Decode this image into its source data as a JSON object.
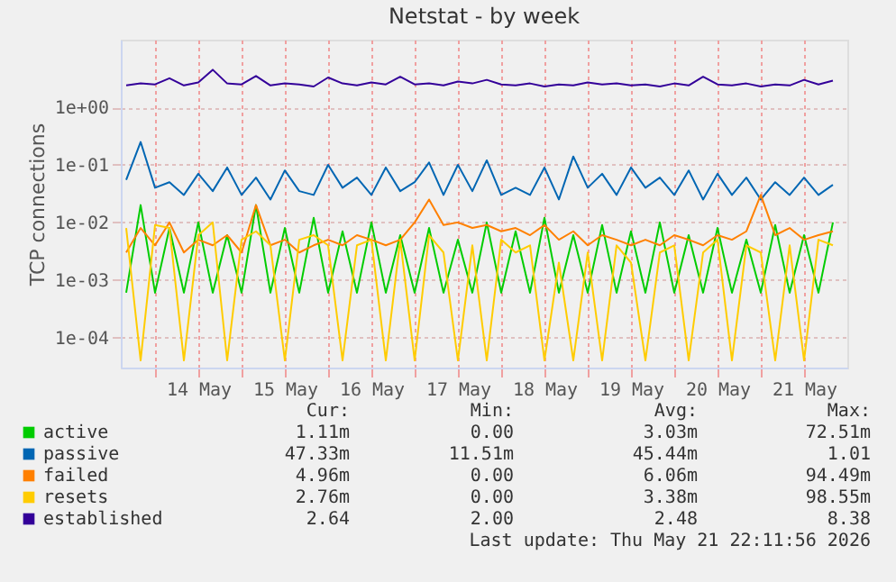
{
  "chart_data": {
    "type": "line",
    "title": "Netstat - by week",
    "ylabel": "TCP connections",
    "log": "y",
    "grid": true,
    "legend": "bottom",
    "line_style": "solid",
    "marker": "none",
    "xlim": [
      "2026-05-13T14:30",
      "2026-05-22T00:00"
    ],
    "xticks": [
      {
        "value": "2026-05-14T00:00",
        "label": null
      },
      {
        "value": "2026-05-14T12:00",
        "label": "14 May"
      },
      {
        "value": "2026-05-15T00:00",
        "label": null
      },
      {
        "value": "2026-05-15T12:00",
        "label": "15 May"
      },
      {
        "value": "2026-05-16T00:00",
        "label": null
      },
      {
        "value": "2026-05-16T12:00",
        "label": "16 May"
      },
      {
        "value": "2026-05-17T00:00",
        "label": null
      },
      {
        "value": "2026-05-17T12:00",
        "label": "17 May"
      },
      {
        "value": "2026-05-18T00:00",
        "label": null
      },
      {
        "value": "2026-05-18T12:00",
        "label": "18 May"
      },
      {
        "value": "2026-05-19T00:00",
        "label": null
      },
      {
        "value": "2026-05-19T12:00",
        "label": "19 May"
      },
      {
        "value": "2026-05-20T00:00",
        "label": null
      },
      {
        "value": "2026-05-20T12:00",
        "label": "20 May"
      },
      {
        "value": "2026-05-21T00:00",
        "label": null
      },
      {
        "value": "2026-05-21T12:00",
        "label": "21 May"
      }
    ],
    "ylim": [
      3e-05,
      15
    ],
    "yticks": [
      {
        "value": 0.0001,
        "label": "1e-04"
      },
      {
        "value": 0.001,
        "label": "1e-03"
      },
      {
        "value": 0.01,
        "label": "1e-02"
      },
      {
        "value": 0.1,
        "label": "1e-01"
      },
      {
        "value": 1,
        "label": "1e+00"
      }
    ],
    "x": [
      "2026-05-13T16:00",
      "2026-05-13T20:00",
      "2026-05-14T00:00",
      "2026-05-14T04:00",
      "2026-05-14T08:00",
      "2026-05-14T12:00",
      "2026-05-14T16:00",
      "2026-05-14T20:00",
      "2026-05-15T00:00",
      "2026-05-15T04:00",
      "2026-05-15T08:00",
      "2026-05-15T12:00",
      "2026-05-15T16:00",
      "2026-05-15T20:00",
      "2026-05-16T00:00",
      "2026-05-16T04:00",
      "2026-05-16T08:00",
      "2026-05-16T12:00",
      "2026-05-16T16:00",
      "2026-05-16T20:00",
      "2026-05-17T00:00",
      "2026-05-17T04:00",
      "2026-05-17T08:00",
      "2026-05-17T12:00",
      "2026-05-17T16:00",
      "2026-05-17T20:00",
      "2026-05-18T00:00",
      "2026-05-18T04:00",
      "2026-05-18T08:00",
      "2026-05-18T12:00",
      "2026-05-18T16:00",
      "2026-05-18T20:00",
      "2026-05-19T00:00",
      "2026-05-19T04:00",
      "2026-05-19T08:00",
      "2026-05-19T12:00",
      "2026-05-19T16:00",
      "2026-05-19T20:00",
      "2026-05-20T00:00",
      "2026-05-20T04:00",
      "2026-05-20T08:00",
      "2026-05-20T12:00",
      "2026-05-20T16:00",
      "2026-05-20T20:00",
      "2026-05-21T00:00",
      "2026-05-21T04:00",
      "2026-05-21T08:00",
      "2026-05-21T12:00",
      "2026-05-21T16:00",
      "2026-05-21T20:00"
    ],
    "series": [
      {
        "name": "active",
        "color": "#00cc00",
        "values": [
          0.0006,
          0.02,
          0.0006,
          0.008,
          0.0006,
          0.01,
          0.0006,
          0.006,
          0.0006,
          0.02,
          0.0006,
          0.008,
          0.0006,
          0.012,
          0.0006,
          0.007,
          0.0006,
          0.01,
          0.0006,
          0.006,
          0.0006,
          0.008,
          0.0006,
          0.005,
          0.0006,
          0.01,
          0.0006,
          0.007,
          0.0006,
          0.012,
          0.0006,
          0.006,
          0.0006,
          0.009,
          0.0006,
          0.007,
          0.0006,
          0.01,
          0.0006,
          0.006,
          0.0006,
          0.008,
          0.0006,
          0.005,
          0.0006,
          0.009,
          0.0006,
          0.006,
          0.0006,
          0.01
        ]
      },
      {
        "name": "passive",
        "color": "#0066b3",
        "values": [
          0.055,
          0.25,
          0.04,
          0.05,
          0.03,
          0.07,
          0.035,
          0.09,
          0.03,
          0.06,
          0.025,
          0.08,
          0.035,
          0.03,
          0.1,
          0.04,
          0.06,
          0.03,
          0.09,
          0.035,
          0.05,
          0.11,
          0.03,
          0.1,
          0.035,
          0.12,
          0.03,
          0.04,
          0.03,
          0.09,
          0.025,
          0.14,
          0.04,
          0.07,
          0.03,
          0.09,
          0.04,
          0.06,
          0.03,
          0.08,
          0.025,
          0.07,
          0.03,
          0.06,
          0.025,
          0.05,
          0.03,
          0.06,
          0.03,
          0.045
        ]
      },
      {
        "name": "failed",
        "color": "#ff8000",
        "values": [
          0.003,
          0.008,
          0.004,
          0.01,
          0.003,
          0.005,
          0.004,
          0.006,
          0.003,
          0.02,
          0.004,
          0.005,
          0.003,
          0.004,
          0.005,
          0.004,
          0.006,
          0.005,
          0.004,
          0.005,
          0.01,
          0.025,
          0.009,
          0.01,
          0.008,
          0.009,
          0.007,
          0.008,
          0.006,
          0.009,
          0.005,
          0.007,
          0.004,
          0.006,
          0.005,
          0.004,
          0.005,
          0.004,
          0.006,
          0.005,
          0.004,
          0.006,
          0.005,
          0.007,
          0.03,
          0.006,
          0.008,
          0.005,
          0.006,
          0.007
        ]
      },
      {
        "name": "resets",
        "color": "#ffcc00",
        "values": [
          0.008,
          4e-05,
          0.009,
          0.008,
          4e-05,
          0.006,
          0.01,
          4e-05,
          0.005,
          0.007,
          0.004,
          4e-05,
          0.005,
          0.006,
          0.004,
          4e-05,
          0.004,
          0.005,
          4e-05,
          0.005,
          4e-05,
          0.006,
          0.003,
          4e-05,
          0.004,
          4e-05,
          0.005,
          0.003,
          0.004,
          4e-05,
          0.002,
          4e-05,
          0.003,
          4e-05,
          0.004,
          0.002,
          4e-05,
          0.003,
          0.004,
          4e-05,
          0.003,
          0.005,
          4e-05,
          0.004,
          0.003,
          4e-05,
          0.004,
          4e-05,
          0.005,
          0.004
        ]
      },
      {
        "name": "established",
        "color": "#330099",
        "values": [
          2.4,
          2.6,
          2.5,
          3.2,
          2.4,
          2.7,
          4.5,
          2.6,
          2.5,
          3.5,
          2.4,
          2.6,
          2.5,
          2.3,
          3.3,
          2.6,
          2.4,
          2.7,
          2.5,
          3.4,
          2.5,
          2.6,
          2.4,
          2.8,
          2.6,
          3.0,
          2.5,
          2.4,
          2.6,
          2.3,
          2.5,
          2.4,
          2.7,
          2.5,
          2.6,
          2.4,
          2.5,
          2.3,
          2.6,
          2.4,
          3.4,
          2.5,
          2.4,
          2.6,
          2.3,
          2.5,
          2.4,
          3.0,
          2.5,
          2.9
        ]
      }
    ],
    "annotations": [
      "Cur:",
      "Min:",
      "Avg:",
      "Max:",
      "1.11m",
      "0.00",
      "3.03m",
      "72.51m",
      "47.33m",
      "11.51m",
      "45.44m",
      "1.01",
      "4.96m",
      "0.00",
      "6.06m",
      "94.49m",
      "2.76m",
      "0.00",
      "3.38m",
      "98.55m",
      "2.64",
      "2.00",
      "2.48",
      "8.38",
      "Last update: Thu May 21 22:11:56 2026"
    ]
  }
}
